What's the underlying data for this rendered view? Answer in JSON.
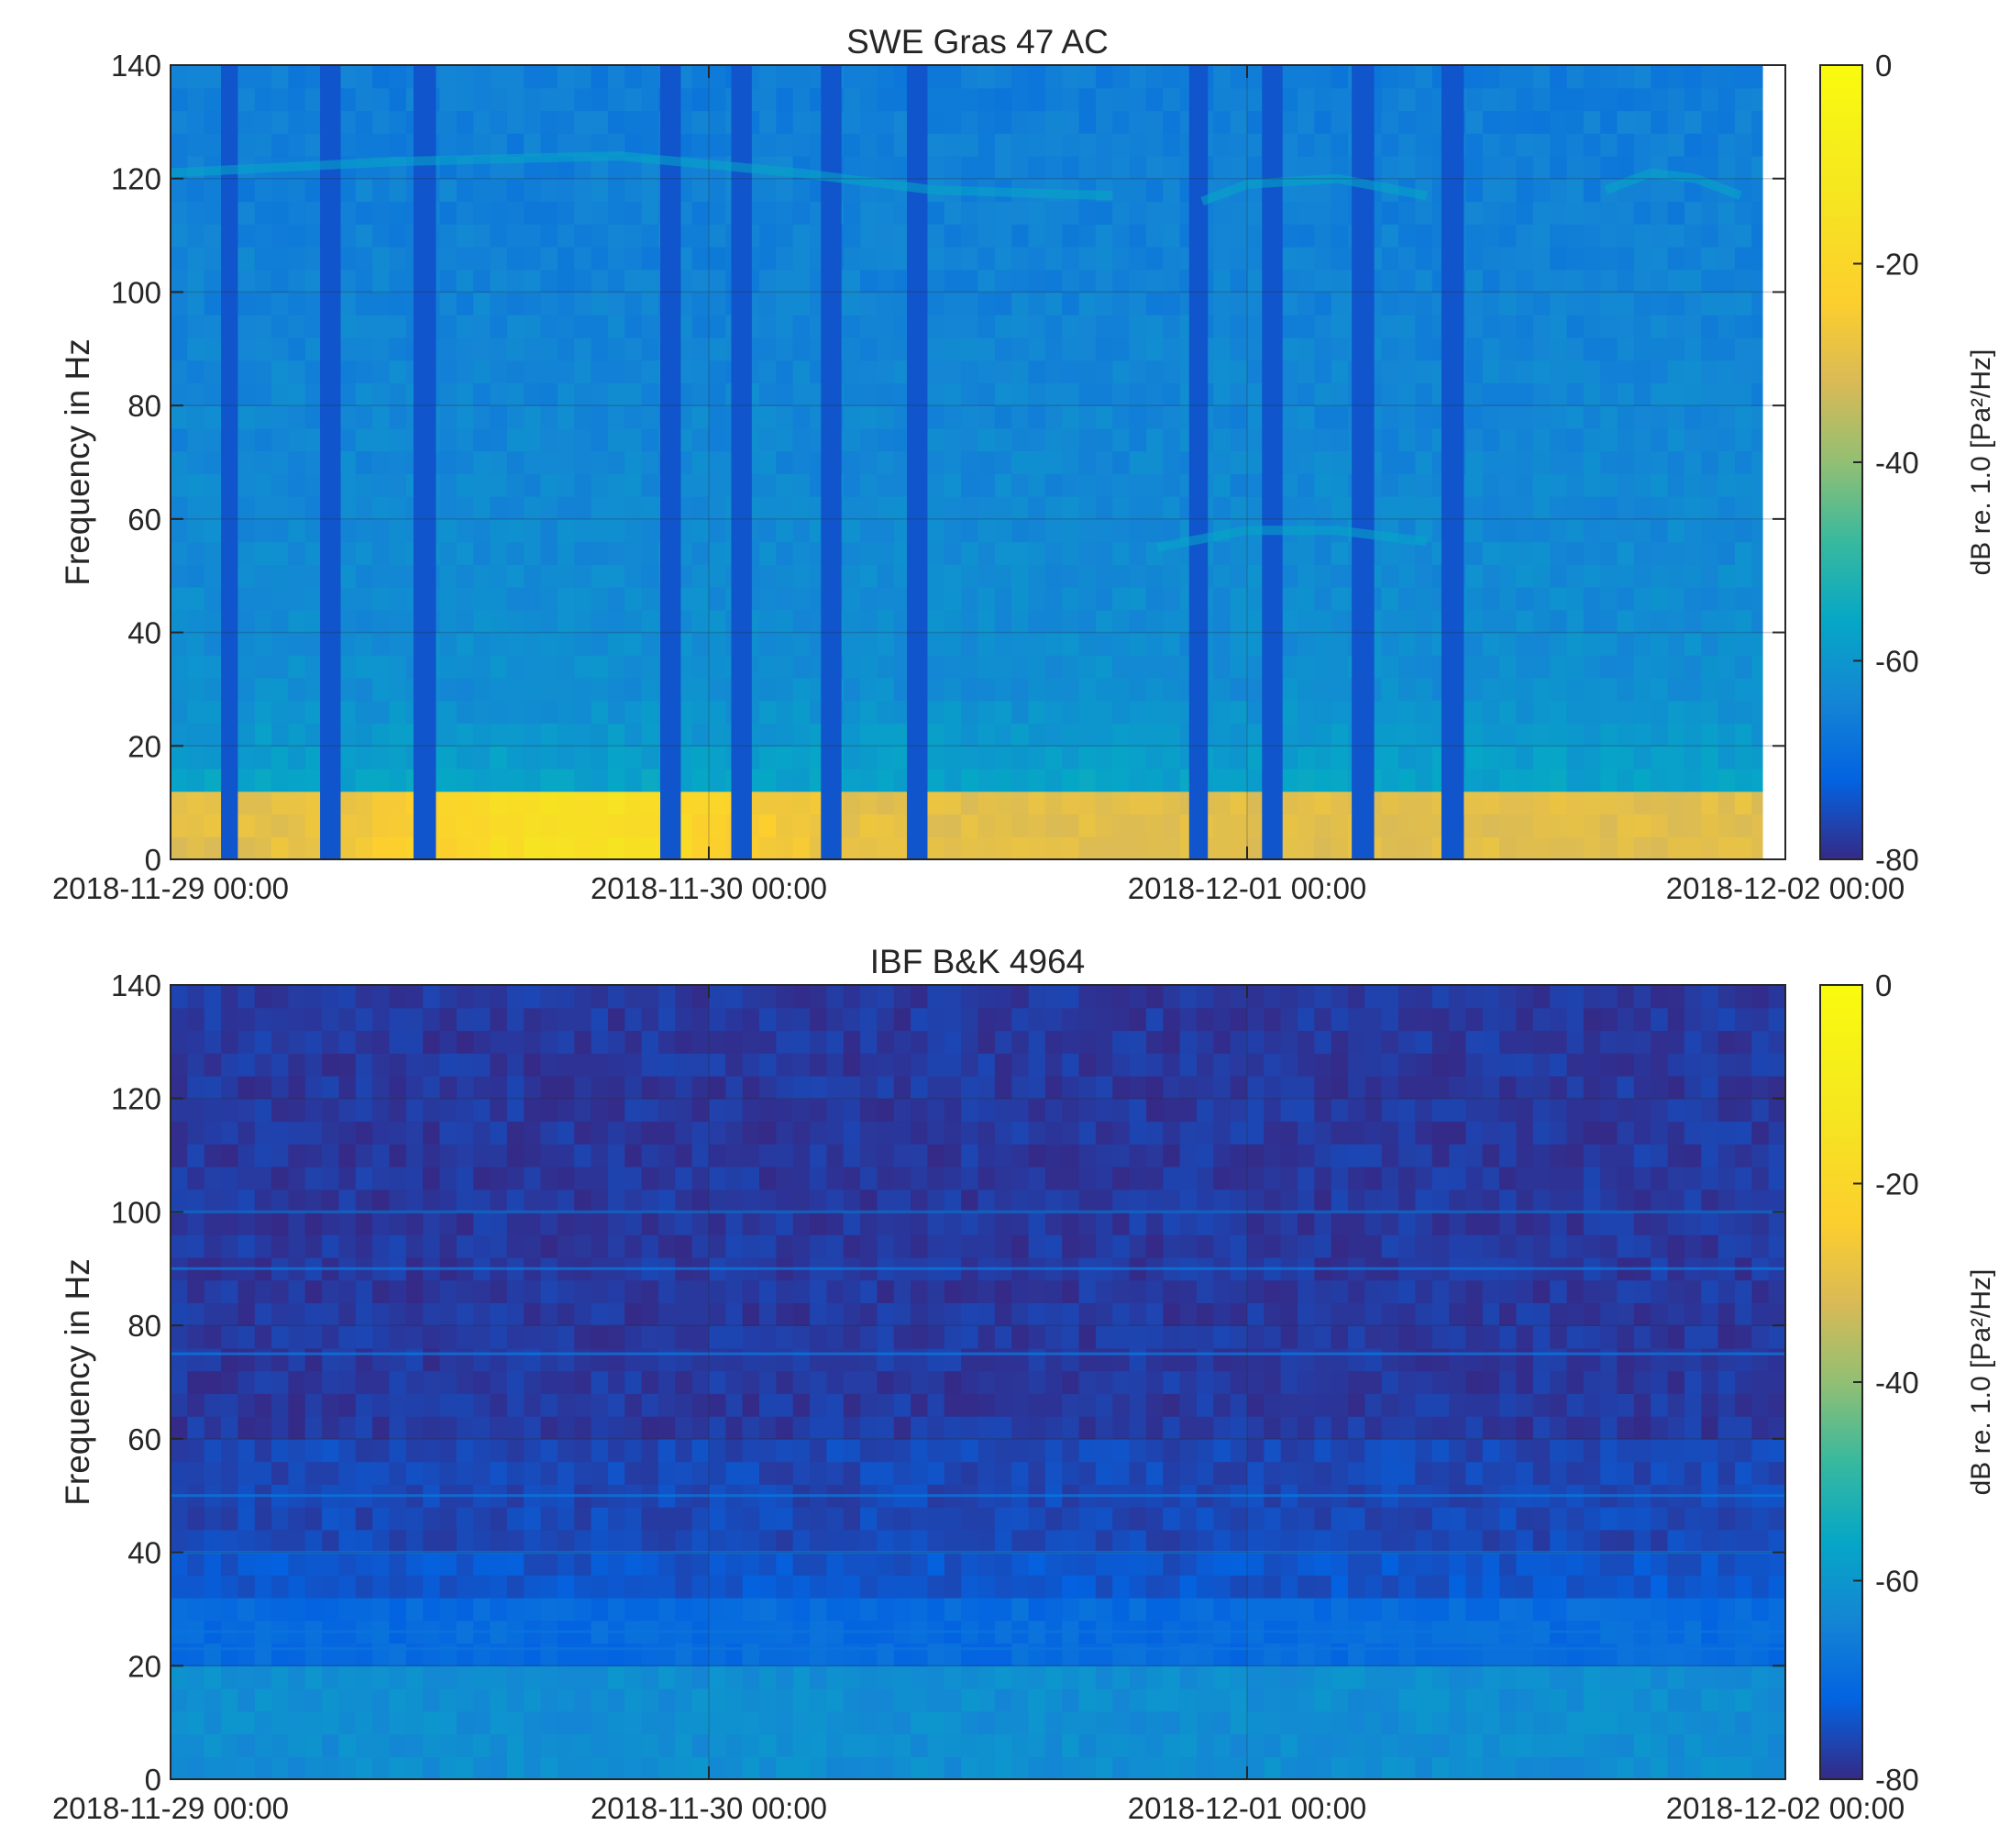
{
  "chart_data": [
    {
      "type": "heatmap",
      "title": "SWE Gras 47 AC",
      "xlabel": "",
      "ylabel": "Frequency in Hz",
      "x_ticks": [
        "2018-11-29 00:00",
        "2018-11-30 00:00",
        "2018-12-01 00:00",
        "2018-12-02 00:00"
      ],
      "x_range": [
        "2018-11-29 00:00",
        "2018-12-02 00:00"
      ],
      "y_ticks": [
        0,
        20,
        40,
        60,
        80,
        100,
        120,
        140
      ],
      "ylim": [
        0,
        140
      ],
      "grid": true,
      "colorbar": {
        "label": "dB re. 1.0 [Pa²/Hz]",
        "ticks": [
          0,
          -20,
          -40,
          -60,
          -80
        ],
        "range": [
          -80,
          0
        ],
        "colormap": "parula"
      },
      "data_end": "2018-12-01 23:00",
      "background_level_db": -62,
      "low_frequency_band": {
        "frequency_hz": [
          0,
          10
        ],
        "level_db": -30,
        "peak_level_db": -15,
        "peak_time": "2018-11-29 18:00"
      },
      "upper_frequency_level_db": -66,
      "dark_gaps": [
        {
          "start": "2018-11-29 02:15",
          "end": "2018-11-29 03:00"
        },
        {
          "start": "2018-11-29 06:40",
          "end": "2018-11-29 07:35"
        },
        {
          "start": "2018-11-29 10:50",
          "end": "2018-11-29 11:50"
        },
        {
          "start": "2018-11-29 21:50",
          "end": "2018-11-29 22:45"
        },
        {
          "start": "2018-11-30 01:00",
          "end": "2018-11-30 01:55"
        },
        {
          "start": "2018-11-30 05:00",
          "end": "2018-11-30 05:55"
        },
        {
          "start": "2018-11-30 08:50",
          "end": "2018-11-30 09:45"
        },
        {
          "start": "2018-11-30 21:25",
          "end": "2018-11-30 22:15"
        },
        {
          "start": "2018-12-01 00:40",
          "end": "2018-12-01 01:35"
        },
        {
          "start": "2018-12-01 04:40",
          "end": "2018-12-01 05:40"
        },
        {
          "start": "2018-12-01 08:40",
          "end": "2018-12-01 09:40"
        },
        {
          "start": "2018-12-01 23:20",
          "end": "2018-12-02 00:00"
        }
      ],
      "tonal_traces": [
        {
          "time": [
            "2018-11-29 00:00",
            "2018-11-29 10:00",
            "2018-11-29 20:00",
            "2018-11-30 04:00",
            "2018-11-30 10:00",
            "2018-11-30 18:00"
          ],
          "frequency_hz": [
            121,
            123,
            124,
            121,
            118,
            117
          ]
        },
        {
          "time": [
            "2018-11-30 22:00",
            "2018-12-01 00:00",
            "2018-12-01 04:00",
            "2018-12-01 08:00"
          ],
          "frequency_hz": [
            116,
            119,
            120,
            117
          ]
        },
        {
          "time": [
            "2018-12-01 16:00",
            "2018-12-01 18:00",
            "2018-12-01 20:00",
            "2018-12-01 22:00"
          ],
          "frequency_hz": [
            118,
            121,
            120,
            117
          ]
        },
        {
          "time": [
            "2018-11-30 20:00",
            "2018-12-01 00:00",
            "2018-12-01 04:00",
            "2018-12-01 08:00"
          ],
          "frequency_hz": [
            55,
            58,
            58,
            56
          ]
        }
      ]
    },
    {
      "type": "heatmap",
      "title": "IBF B&K 4964",
      "xlabel": "",
      "ylabel": "Frequency in Hz",
      "x_ticks": [
        "2018-11-29 00:00",
        "2018-11-30 00:00",
        "2018-12-01 00:00",
        "2018-12-02 00:00"
      ],
      "x_range": [
        "2018-11-29 00:00",
        "2018-12-02 00:00"
      ],
      "y_ticks": [
        0,
        20,
        40,
        60,
        80,
        100,
        120,
        140
      ],
      "ylim": [
        0,
        140
      ],
      "grid": true,
      "colorbar": {
        "label": "dB re. 1.0 [Pa²/Hz]",
        "ticks": [
          0,
          -20,
          -40,
          -60,
          -80
        ],
        "range": [
          -80,
          0
        ],
        "colormap": "parula"
      },
      "data_end": "2018-12-02 00:00",
      "background_level_db": -78,
      "frequency_bands": [
        {
          "frequency_hz": [
            0,
            2
          ],
          "level_db": -45
        },
        {
          "frequency_hz": [
            2,
            19
          ],
          "level_db": -62
        },
        {
          "frequency_hz": [
            19,
            31
          ],
          "level_db": -70
        },
        {
          "frequency_hz": [
            31,
            42
          ],
          "level_db": -74
        },
        {
          "frequency_hz": [
            42,
            60
          ],
          "level_db": -76
        }
      ],
      "horizontal_lines_hz": [
        100,
        90,
        75,
        50,
        40,
        26,
        23
      ]
    }
  ]
}
